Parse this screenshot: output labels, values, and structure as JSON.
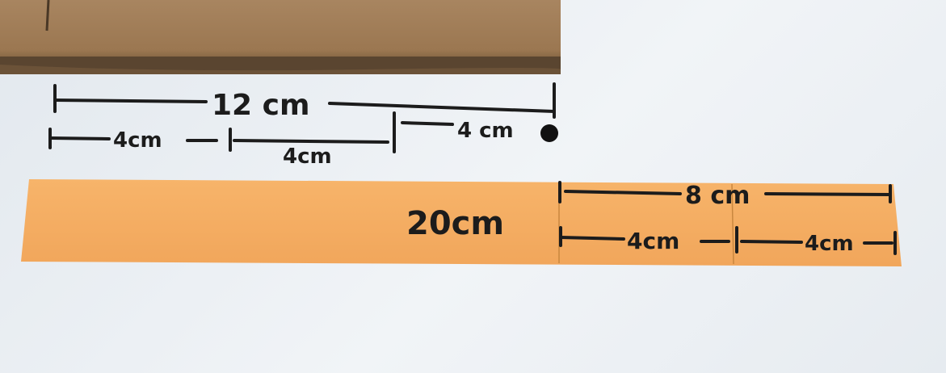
{
  "colors": {
    "background": "#eceff3",
    "cardboard": "#a07c55",
    "cardboard_edge": "#5a4530",
    "paper_strip": "#f5ad62",
    "ink": "#1c1c1c"
  },
  "cardboard": {
    "total_label": "12 cm",
    "segment_labels": [
      "4cm",
      "4cm",
      "4 cm"
    ]
  },
  "paper_strip": {
    "total_label": "20cm",
    "right_total_label": "8 cm",
    "segment_labels": [
      "4cm",
      "4cm"
    ]
  }
}
